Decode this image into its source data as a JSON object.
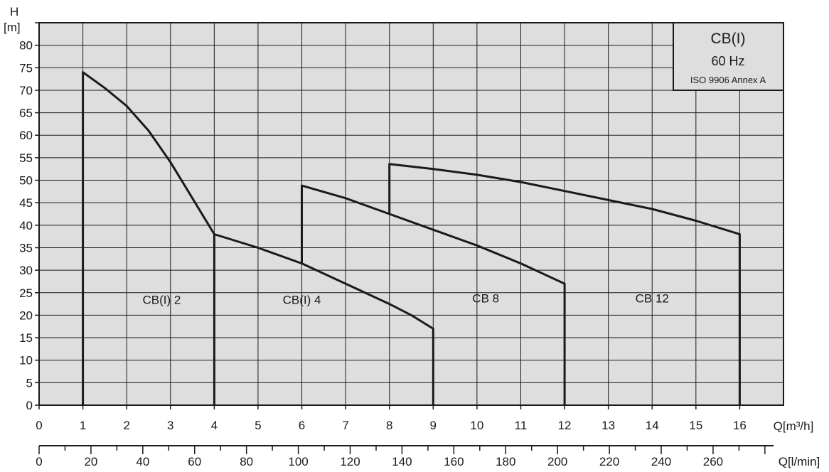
{
  "chart_data": {
    "type": "line",
    "legend": {
      "title": "CB(I)",
      "frequency": "60 Hz",
      "standard": "ISO 9906 Annex A",
      "position": "top-right"
    },
    "ylabel_top": "H",
    "ylabel_unit": "[m]",
    "xlabel": "Q[m³/h]",
    "x2label": "Q[l/min]",
    "xlim": [
      0,
      17
    ],
    "ylim": [
      0,
      85
    ],
    "x2lim": [
      0,
      283.33
    ],
    "grid": true,
    "x_ticks": [
      "0",
      "1",
      "2",
      "3",
      "4",
      "5",
      "6",
      "7",
      "8",
      "9",
      "10",
      "11",
      "12",
      "13",
      "14",
      "15",
      "16"
    ],
    "y_ticks": [
      "0",
      "5",
      "10",
      "15",
      "20",
      "25",
      "30",
      "35",
      "40",
      "45",
      "50",
      "55",
      "60",
      "65",
      "70",
      "75",
      "80"
    ],
    "x2_ticks": [
      "0",
      "20",
      "40",
      "60",
      "80",
      "100",
      "120",
      "140",
      "160",
      "180",
      "200",
      "220",
      "240",
      "260"
    ],
    "series": [
      {
        "name": "CB(I) 2",
        "label_at": [
          2.8,
          22.5
        ],
        "points": [
          [
            1,
            0
          ],
          [
            1,
            74
          ],
          [
            1.5,
            70.5
          ],
          [
            2,
            66.5
          ],
          [
            2.5,
            61
          ],
          [
            3,
            54
          ],
          [
            3.5,
            46
          ],
          [
            4,
            38
          ],
          [
            4,
            0
          ]
        ]
      },
      {
        "name": "CB(I) 4",
        "label_at": [
          6.0,
          22.5
        ],
        "points": [
          [
            4,
            38
          ],
          [
            5,
            35
          ],
          [
            6,
            31.5
          ],
          [
            7,
            27
          ],
          [
            8,
            22.5
          ],
          [
            8.5,
            20
          ],
          [
            9,
            17
          ],
          [
            9,
            0
          ]
        ]
      },
      {
        "name": "CB 8",
        "label_at": [
          10.2,
          22.8
        ],
        "points": [
          [
            6,
            31.5
          ],
          [
            6,
            48.8
          ],
          [
            7,
            46
          ],
          [
            8,
            42.5
          ],
          [
            9,
            39
          ],
          [
            10,
            35.5
          ],
          [
            11,
            31.5
          ],
          [
            12,
            27
          ],
          [
            12,
            0
          ]
        ]
      },
      {
        "name": "CB 12",
        "label_at": [
          14.0,
          22.8
        ],
        "points": [
          [
            8,
            42.5
          ],
          [
            8,
            53.6
          ],
          [
            9,
            52.5
          ],
          [
            10,
            51.2
          ],
          [
            11,
            49.6
          ],
          [
            12,
            47.6
          ],
          [
            13,
            45.6
          ],
          [
            14,
            43.6
          ],
          [
            15,
            41
          ],
          [
            15.5,
            39.5
          ],
          [
            16,
            38
          ],
          [
            16,
            0
          ]
        ]
      }
    ]
  }
}
